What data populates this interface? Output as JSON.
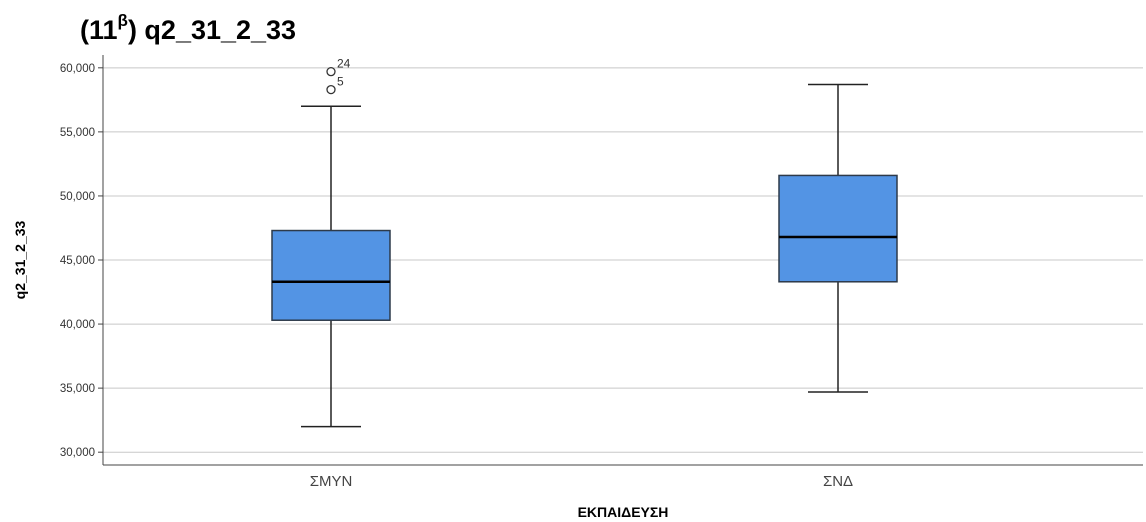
{
  "title": {
    "prefix": "(11",
    "superscript": "β",
    "suffix": ") q2_31_2_33"
  },
  "chart_data": {
    "type": "boxplot",
    "xlabel": "ΕΚΠΑΙΔΕΥΣΗ",
    "ylabel": "q2_31_2_33",
    "ylim": [
      29000,
      61000
    ],
    "yticks": [
      30000,
      35000,
      40000,
      45000,
      50000,
      55000,
      60000
    ],
    "ytick_labels": [
      "30,000",
      "35,000",
      "40,000",
      "45,000",
      "50,000",
      "55,000",
      "60,000"
    ],
    "grid": "horizontal",
    "box_color": "#5394E4",
    "categories": [
      "ΣΜΥΝ",
      "ΣΝΔ"
    ],
    "boxes": [
      {
        "category": "ΣΜΥΝ",
        "whisker_low": 32000,
        "q1": 40300,
        "median": 43300,
        "q3": 47300,
        "whisker_high": 57000,
        "outliers": [
          {
            "value": 59700,
            "label": "24"
          },
          {
            "value": 58300,
            "label": "5"
          }
        ]
      },
      {
        "category": "ΣΝΔ",
        "whisker_low": 34700,
        "q1": 43300,
        "median": 46800,
        "q3": 51600,
        "whisker_high": 58700,
        "outliers": []
      }
    ]
  }
}
